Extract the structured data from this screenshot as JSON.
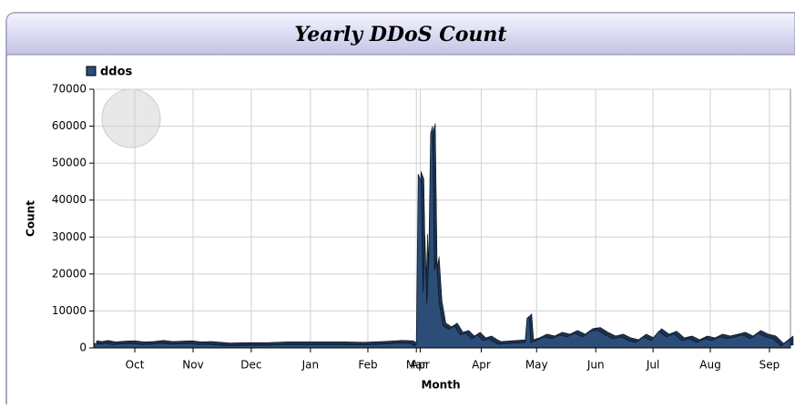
{
  "chart_data": {
    "type": "area",
    "title": "Yearly DDoS Count",
    "xlabel": "Month",
    "ylabel": "Count",
    "x": [
      0,
      3,
      6,
      10,
      15,
      20,
      25,
      30,
      35,
      40,
      45,
      50,
      55,
      60,
      70,
      80,
      90,
      100,
      110,
      120,
      130,
      140,
      150,
      160,
      166,
      168,
      169,
      170,
      171.5,
      172.5,
      173.5,
      174.5,
      175.5,
      176.5,
      177.5,
      178.5,
      179.5,
      181,
      183,
      186,
      189,
      192,
      195,
      198,
      201,
      204,
      207,
      210,
      212,
      226,
      227,
      228,
      229,
      232,
      236,
      240,
      244,
      248,
      252,
      256,
      260,
      264,
      268,
      272,
      276,
      280,
      284,
      288,
      292,
      296,
      300,
      304,
      308,
      312,
      316,
      320,
      324,
      328,
      332,
      336,
      340,
      344,
      348,
      352,
      356,
      360,
      365
    ],
    "series": [
      {
        "name": "ddos",
        "color": "#2b4d77",
        "values": [
          1200,
          1000,
          1300,
          900,
          1100,
          1200,
          900,
          1000,
          1300,
          1000,
          1100,
          1200,
          900,
          1000,
          600,
          700,
          700,
          900,
          900,
          900,
          900,
          800,
          1000,
          1300,
          1200,
          500,
          1000,
          47000,
          45000,
          15000,
          30000,
          12000,
          24000,
          58000,
          60000,
          21000,
          24000,
          12000,
          6000,
          5000,
          6000,
          3500,
          4000,
          2500,
          3500,
          2000,
          2500,
          1500,
          1000,
          1500,
          8000,
          8500,
          1500,
          2000,
          3000,
          2500,
          3500,
          3000,
          4000,
          3000,
          4500,
          4800,
          3500,
          2500,
          3000,
          2000,
          1500,
          3000,
          2000,
          4500,
          3000,
          3800,
          2000,
          2500,
          1500,
          2500,
          2000,
          3000,
          2500,
          3000,
          3500,
          2500,
          4000,
          3000,
          2500,
          500,
          2500
        ]
      }
    ],
    "xlim": [
      0,
      365
    ],
    "xticks": [
      {
        "value": 21.5,
        "label": "Oct"
      },
      {
        "value": 52,
        "label": "Nov"
      },
      {
        "value": 82.5,
        "label": "Dec"
      },
      {
        "value": 113.5,
        "label": "Jan"
      },
      {
        "value": 143.6,
        "label": "Feb"
      },
      {
        "value": 169,
        "label": "Mar"
      },
      {
        "value": 171,
        "label": "Apr"
      },
      {
        "value": 203,
        "label": "Apr"
      },
      {
        "value": 232,
        "label": "May"
      },
      {
        "value": 263,
        "label": "Jun"
      },
      {
        "value": 293,
        "label": "Jul"
      },
      {
        "value": 323,
        "label": "Aug"
      },
      {
        "value": 354,
        "label": "Sep"
      }
    ],
    "ylim": [
      0,
      70000
    ],
    "yticks": [
      0,
      10000,
      20000,
      30000,
      40000,
      50000,
      60000,
      70000
    ],
    "grid": true
  }
}
